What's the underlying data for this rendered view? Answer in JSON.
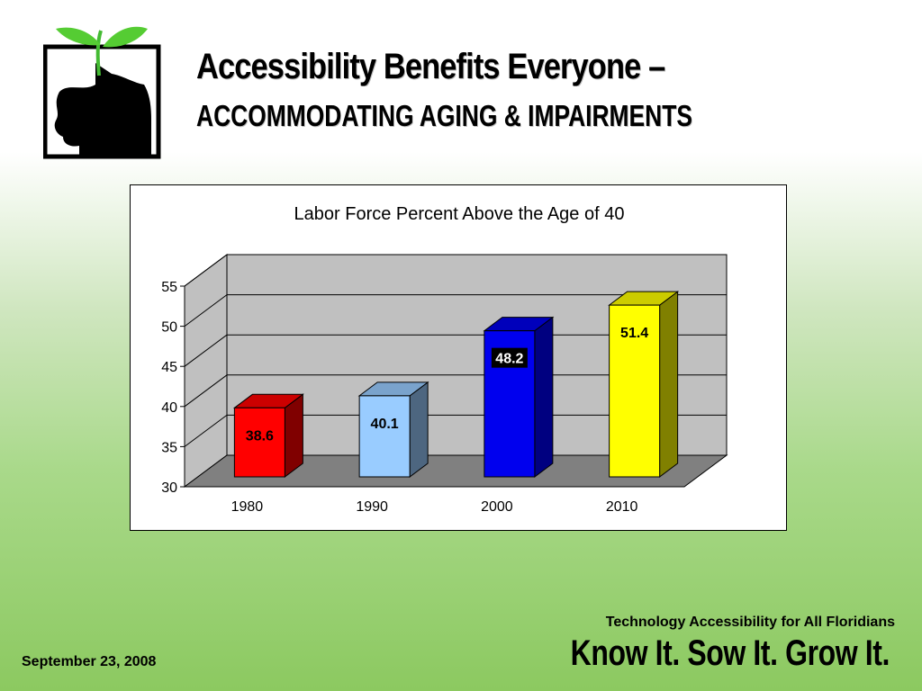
{
  "slide": {
    "title": "Accessibility Benefits Everyone –",
    "subtitle": "ACCOMMODATING AGING & IMPAIRMENTS",
    "tagline": "Technology Accessibility for All Floridians",
    "slogan": "Know It.  Sow It.  Grow It.",
    "date": "September 23, 2008"
  },
  "chart_data": {
    "type": "bar",
    "title": "Labor Force Percent Above the Age of 40",
    "categories": [
      "1980",
      "1990",
      "2000",
      "2010"
    ],
    "values": [
      38.6,
      40.1,
      48.2,
      51.4
    ],
    "value_labels": [
      "38.6",
      "40.1",
      "48.2",
      "51.4"
    ],
    "ylim": [
      30,
      55
    ],
    "yticks": [
      "30",
      "35",
      "40",
      "45",
      "50",
      "55"
    ],
    "xlabel": "",
    "ylabel": "",
    "grid": true,
    "legend": "none",
    "bar_colors": [
      "#ff0000",
      "#99ccff",
      "#0000ee",
      "#ffff00"
    ],
    "bar_side_colors": [
      "#800000",
      "#4d6680",
      "#000080",
      "#808000"
    ],
    "bar_top_colors": [
      "#cc0000",
      "#7aa3cc",
      "#0000bb",
      "#cccc00"
    ],
    "label_text_colors": [
      "#000000",
      "#000000",
      "#ffffff",
      "#000000"
    ],
    "label_bg_colors": [
      "none",
      "none",
      "#000000",
      "none"
    ],
    "wall_color": "#c0c0c0",
    "floor_color": "#808080"
  }
}
